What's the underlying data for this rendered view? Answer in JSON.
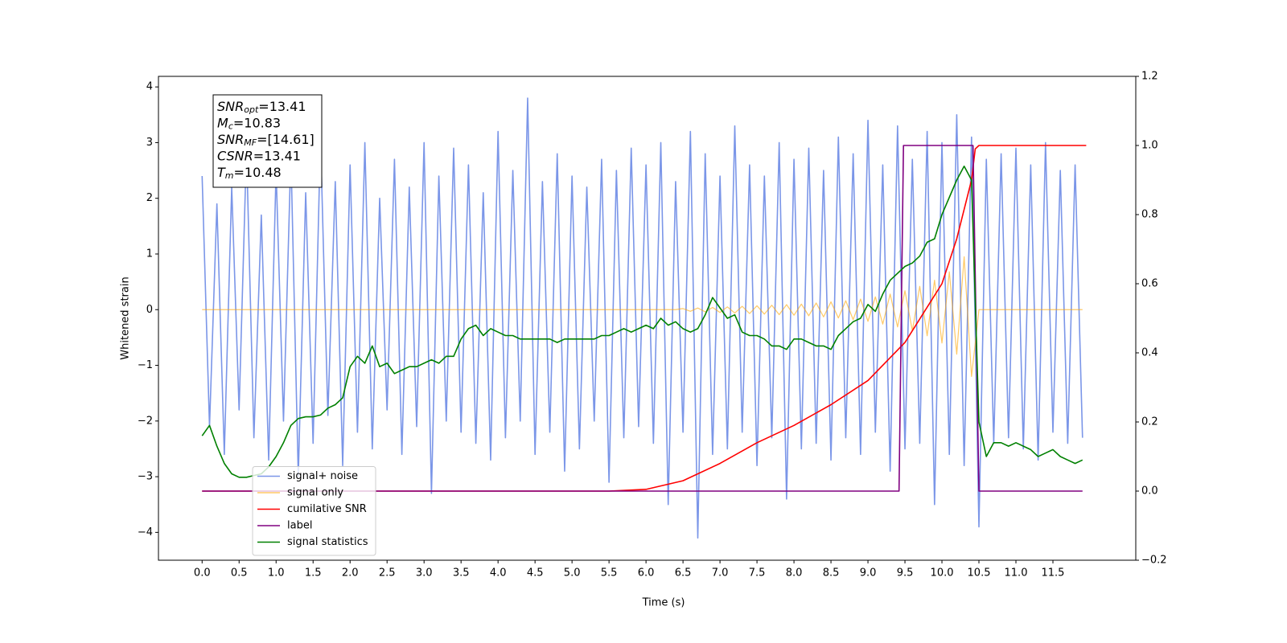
{
  "chart_data": {
    "type": "line",
    "xlabel": "Time (s)",
    "ylabel": "Whitened strain",
    "xlim": [
      -0.59,
      12.62
    ],
    "ylim": [
      -4.5,
      4.19
    ],
    "y2lim": [
      -0.2,
      1.2
    ],
    "xticks": [
      {
        "value": 0,
        "label": "0.0"
      },
      0.5,
      {
        "value": 1,
        "label": "1.0"
      },
      1.5,
      {
        "value": 2,
        "label": "2.0"
      },
      2.5,
      {
        "value": 3,
        "label": "3.0"
      },
      3.5,
      {
        "value": 4,
        "label": "4.0"
      },
      4.5,
      {
        "value": 5,
        "label": "5.0"
      },
      5.5,
      {
        "value": 6,
        "label": "6.0"
      },
      6.5,
      {
        "value": 7,
        "label": "7.0"
      },
      7.5,
      {
        "value": 8,
        "label": "8.0"
      },
      8.5,
      {
        "value": 9,
        "label": "9.0"
      },
      9.5,
      {
        "value": 10,
        "label": "10.0"
      },
      10.5,
      {
        "value": 11,
        "label": "11.0"
      },
      11.5
    ],
    "yticks": [
      {
        "value": -4,
        "label": "−4"
      },
      {
        "value": -3,
        "label": "−3"
      },
      {
        "value": -2,
        "label": "−2"
      },
      {
        "value": -1,
        "label": "−1"
      },
      0,
      1,
      2,
      3,
      4
    ],
    "y2ticks": [
      {
        "value": -0.2,
        "label": "−0.2"
      },
      {
        "value": 0,
        "label": "0.0"
      },
      0.2,
      0.4,
      0.6,
      0.8,
      {
        "value": 1,
        "label": "1.0"
      },
      1.2
    ],
    "legend": "lower left",
    "x": [
      0,
      0.1,
      0.2,
      0.3,
      0.4,
      0.5,
      0.6,
      0.7,
      0.8,
      0.9,
      1,
      1.1,
      1.2,
      1.3,
      1.4,
      1.5,
      1.6,
      1.7,
      1.8,
      1.9,
      2,
      2.1,
      2.2,
      2.3,
      2.4,
      2.5,
      2.6,
      2.7,
      2.8,
      2.9,
      3,
      3.1,
      3.2,
      3.3,
      3.4,
      3.5,
      3.6,
      3.7,
      3.8,
      3.9,
      4,
      4.1,
      4.2,
      4.3,
      4.4,
      4.5,
      4.6,
      4.7,
      4.8,
      4.9,
      5,
      5.1,
      5.2,
      5.3,
      5.4,
      5.5,
      5.6,
      5.7,
      5.8,
      5.9,
      6,
      6.1,
      6.2,
      6.3,
      6.4,
      6.5,
      6.6,
      6.7,
      6.8,
      6.9,
      7,
      7.1,
      7.2,
      7.3,
      7.4,
      7.5,
      7.6,
      7.7,
      7.8,
      7.9,
      8,
      8.1,
      8.2,
      8.3,
      8.4,
      8.5,
      8.6,
      8.7,
      8.8,
      8.9,
      9,
      9.1,
      9.2,
      9.3,
      9.4,
      9.5,
      9.6,
      9.7,
      9.8,
      9.9,
      10,
      10.1,
      10.2,
      10.3,
      10.4,
      10.5,
      10.6,
      10.7,
      10.8,
      10.9,
      11,
      11.1,
      11.2,
      11.3,
      11.4,
      11.5,
      11.6,
      11.7,
      11.8,
      11.9
    ],
    "series": [
      {
        "name": "signal+ noise",
        "color": "#7b96e8",
        "values": [
          2.4,
          -2.1,
          1.9,
          -2.6,
          2.2,
          -1.8,
          2.9,
          -2.3,
          1.7,
          -2.7,
          2.5,
          -2.0,
          2.8,
          -3.0,
          2.1,
          -2.4,
          3.1,
          -1.9,
          2.3,
          -2.8,
          2.6,
          -2.2,
          3.0,
          -2.5,
          2.0,
          -1.8,
          2.7,
          -2.6,
          2.2,
          -2.1,
          3.0,
          -3.3,
          2.4,
          -2.0,
          2.9,
          -2.2,
          2.6,
          -2.4,
          2.1,
          -2.7,
          3.2,
          -2.3,
          2.5,
          -2.0,
          3.8,
          -2.6,
          2.3,
          -2.2,
          2.8,
          -2.9,
          2.4,
          -2.5,
          2.2,
          -2.0,
          2.7,
          -3.1,
          2.5,
          -2.3,
          2.9,
          -2.1,
          2.6,
          -2.4,
          3.0,
          -3.5,
          2.3,
          -2.2,
          3.2,
          -4.1,
          2.8,
          -2.6,
          2.4,
          -2.5,
          3.3,
          -2.2,
          2.6,
          -2.8,
          2.4,
          -2.3,
          3.0,
          -3.4,
          2.7,
          -2.5,
          2.9,
          -2.4,
          2.5,
          -2.7,
          3.1,
          -2.3,
          2.8,
          -2.6,
          3.4,
          -2.2,
          2.6,
          -2.9,
          3.3,
          -2.5,
          2.7,
          -2.4,
          3.2,
          -3.5,
          3.0,
          -2.6,
          3.5,
          -2.8,
          3.1,
          -3.9,
          2.7,
          -2.4,
          2.8,
          -2.3,
          2.9,
          -2.5,
          2.6,
          -2.7,
          3.0,
          -2.2,
          2.5,
          -2.4,
          2.6,
          -2.3
        ]
      },
      {
        "name": "signal only",
        "color": "#ffa500",
        "values": [
          0,
          0,
          0,
          0,
          0,
          0,
          0,
          0,
          0,
          0,
          0,
          0,
          0,
          0,
          0,
          0,
          0,
          0,
          0,
          0,
          0,
          0,
          0,
          0,
          0,
          0,
          0,
          0,
          0,
          0,
          0,
          0,
          0,
          0,
          0,
          0,
          0,
          0,
          0,
          0,
          0,
          0,
          0,
          0,
          0,
          0,
          0,
          0,
          0,
          0,
          0,
          0,
          0,
          0,
          0,
          0,
          0,
          0,
          0,
          0,
          0,
          0,
          0,
          0,
          0,
          0.02,
          -0.03,
          0.03,
          -0.04,
          0.04,
          -0.05,
          0.05,
          -0.06,
          0.06,
          -0.07,
          0.07,
          -0.08,
          0.08,
          -0.09,
          0.09,
          -0.1,
          0.1,
          -0.11,
          0.12,
          -0.13,
          0.14,
          -0.15,
          0.16,
          -0.18,
          0.19,
          -0.21,
          0.23,
          -0.26,
          0.28,
          -0.31,
          0.34,
          -0.38,
          0.42,
          -0.47,
          0.53,
          -0.6,
          0.68,
          -0.8,
          0.95,
          -1.2,
          0,
          0,
          0,
          0,
          0,
          0,
          0,
          0,
          0,
          0,
          0,
          0,
          0,
          0,
          0
        ]
      },
      {
        "name": "cumilative SNR",
        "color": "#ff0000",
        "axis": "y2",
        "x": [
          0,
          5.5,
          6,
          6.5,
          7,
          7.5,
          8,
          8.5,
          9,
          9.5,
          10,
          10.2,
          10.4,
          10.45,
          10.5,
          11.95
        ],
        "values": [
          0,
          0,
          0.005,
          0.03,
          0.08,
          0.14,
          0.19,
          0.25,
          0.32,
          0.43,
          0.6,
          0.73,
          0.9,
          0.99,
          1,
          1
        ]
      },
      {
        "name": "label",
        "color": "#800080",
        "axis": "y2",
        "x": [
          0,
          9.42,
          9.48,
          10.42,
          10.5,
          11.9
        ],
        "values": [
          0,
          0,
          1,
          1,
          0,
          0
        ]
      },
      {
        "name": "signal statistics",
        "color": "#008000",
        "axis": "y2",
        "values": [
          0.16,
          0.19,
          0.13,
          0.08,
          0.05,
          0.04,
          0.04,
          0.045,
          0.05,
          0.07,
          0.1,
          0.14,
          0.19,
          0.21,
          0.215,
          0.215,
          0.22,
          0.24,
          0.25,
          0.27,
          0.36,
          0.39,
          0.37,
          0.42,
          0.36,
          0.37,
          0.34,
          0.35,
          0.36,
          0.36,
          0.37,
          0.38,
          0.37,
          0.39,
          0.39,
          0.44,
          0.47,
          0.48,
          0.45,
          0.47,
          0.46,
          0.45,
          0.45,
          0.44,
          0.44,
          0.44,
          0.44,
          0.44,
          0.43,
          0.44,
          0.44,
          0.44,
          0.44,
          0.44,
          0.45,
          0.45,
          0.46,
          0.47,
          0.46,
          0.47,
          0.48,
          0.47,
          0.5,
          0.48,
          0.49,
          0.47,
          0.46,
          0.47,
          0.51,
          0.56,
          0.53,
          0.5,
          0.51,
          0.46,
          0.45,
          0.45,
          0.44,
          0.42,
          0.42,
          0.41,
          0.44,
          0.44,
          0.43,
          0.42,
          0.42,
          0.41,
          0.45,
          0.47,
          0.49,
          0.5,
          0.54,
          0.52,
          0.57,
          0.61,
          0.63,
          0.65,
          0.66,
          0.68,
          0.72,
          0.73,
          0.8,
          0.85,
          0.9,
          0.94,
          0.9,
          0.2,
          0.1,
          0.14,
          0.14,
          0.13,
          0.14,
          0.13,
          0.12,
          0.1,
          0.11,
          0.12,
          0.1,
          0.09,
          0.08,
          0.09
        ]
      }
    ],
    "annotation": [
      {
        "symbol": "SNR",
        "subscript": "opt",
        "text": "=13.41"
      },
      {
        "symbol": "M",
        "subscript": "c",
        "text": "=10.83"
      },
      {
        "symbol": "SNR",
        "subscript": "MF",
        "text": "=[14.61]"
      },
      {
        "symbol": "CSNR",
        "text": "=13.41"
      },
      {
        "symbol": "T",
        "subscript": "m",
        "text": "=10.48"
      }
    ]
  }
}
